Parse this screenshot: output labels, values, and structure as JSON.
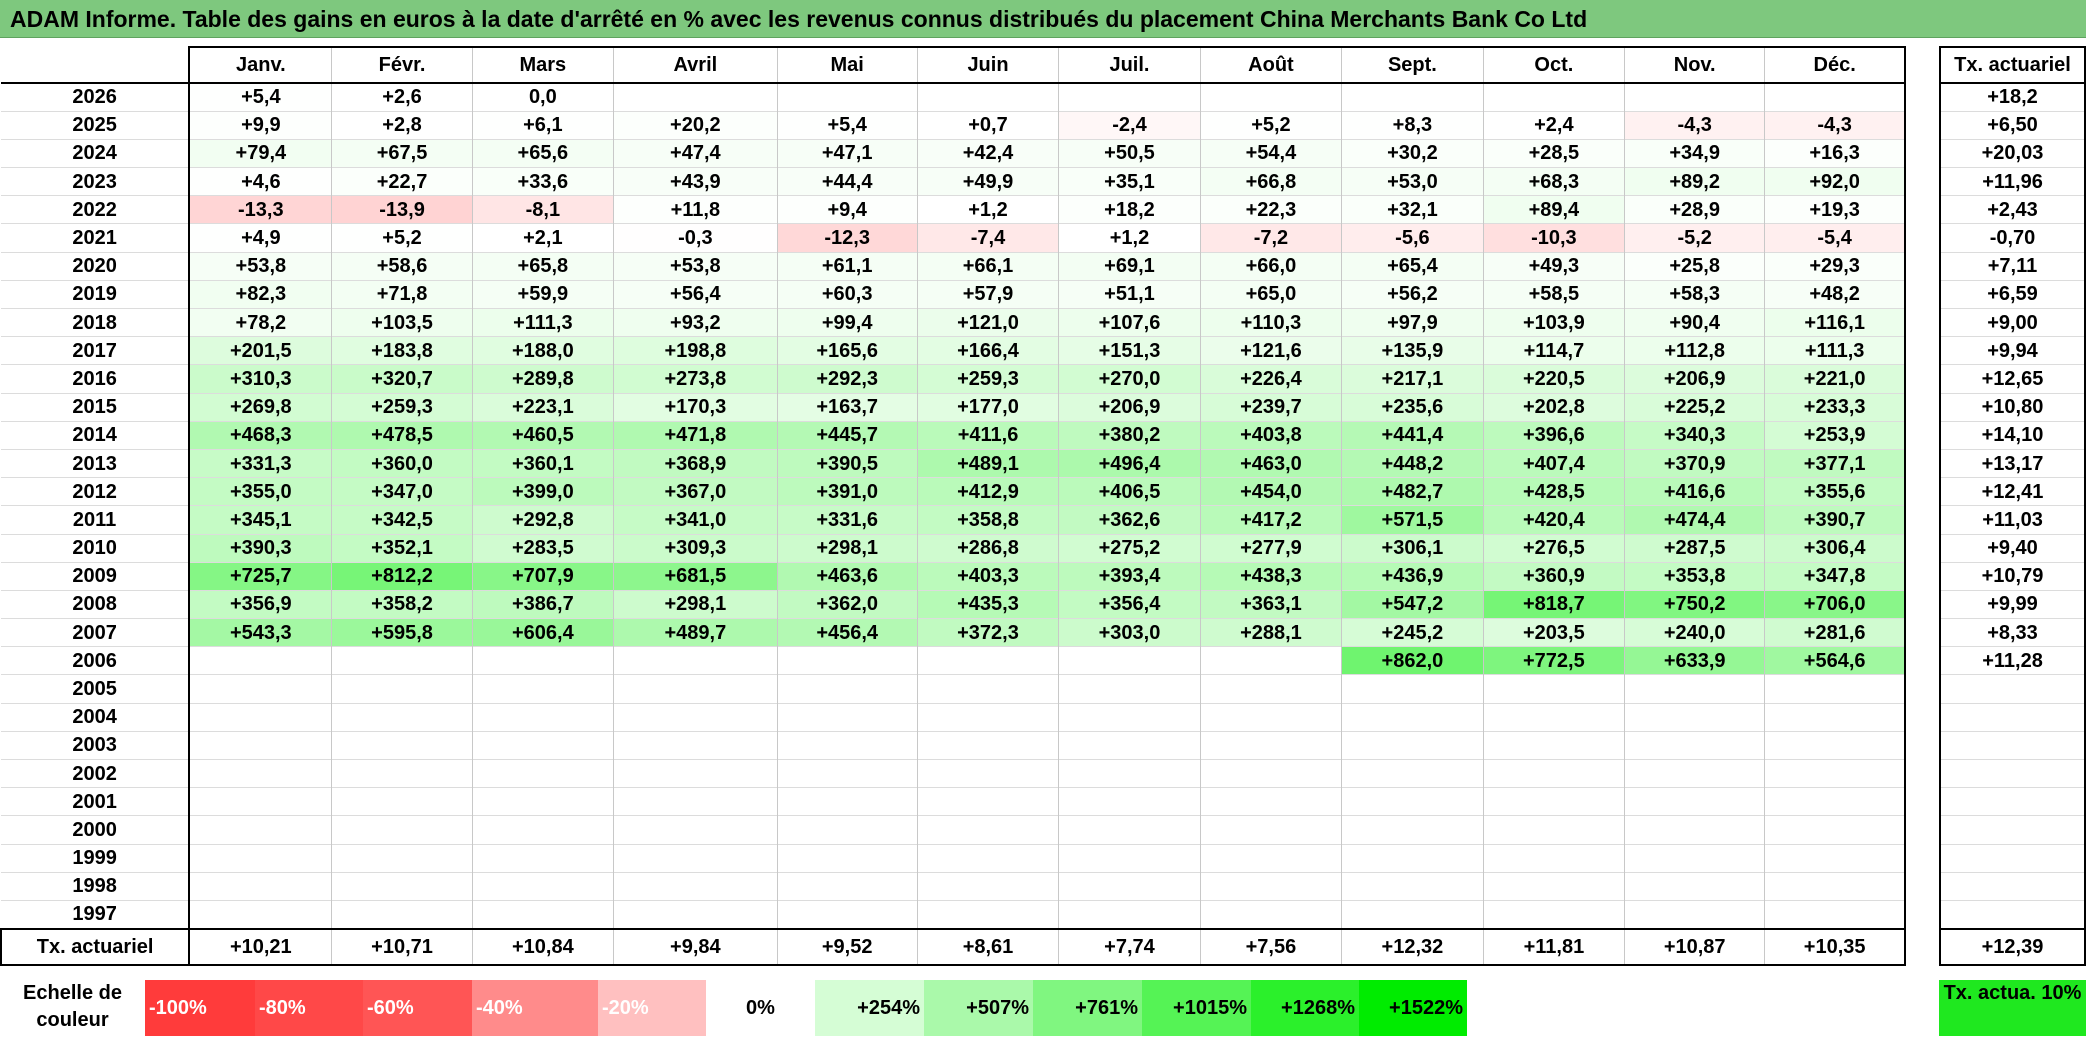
{
  "title": "ADAM Informe. Table des gains en euros à la date d'arrêté en % avec les revenus connus distribués du placement China Merchants Bank Co Ltd",
  "months": [
    "Janv.",
    "Févr.",
    "Mars",
    "Avril",
    "Mai",
    "Juin",
    "Juil.",
    "Août",
    "Sept.",
    "Oct.",
    "Nov.",
    "Déc."
  ],
  "side_header": "Tx. actuariel",
  "rows": [
    {
      "year": "2026",
      "values": [
        "+5,4",
        "+2,6",
        "0,0",
        "",
        "",
        "",
        "",
        "",
        "",
        "",
        "",
        ""
      ],
      "tx": "+18,2"
    },
    {
      "year": "2025",
      "values": [
        "+9,9",
        "+2,8",
        "+6,1",
        "+20,2",
        "+5,4",
        "+0,7",
        "-2,4",
        "+5,2",
        "+8,3",
        "+2,4",
        "-4,3",
        "-4,3"
      ],
      "tx": "+6,50"
    },
    {
      "year": "2024",
      "values": [
        "+79,4",
        "+67,5",
        "+65,6",
        "+47,4",
        "+47,1",
        "+42,4",
        "+50,5",
        "+54,4",
        "+30,2",
        "+28,5",
        "+34,9",
        "+16,3"
      ],
      "tx": "+20,03"
    },
    {
      "year": "2023",
      "values": [
        "+4,6",
        "+22,7",
        "+33,6",
        "+43,9",
        "+44,4",
        "+49,9",
        "+35,1",
        "+66,8",
        "+53,0",
        "+68,3",
        "+89,2",
        "+92,0"
      ],
      "tx": "+11,96"
    },
    {
      "year": "2022",
      "values": [
        "-13,3",
        "-13,9",
        "-8,1",
        "+11,8",
        "+9,4",
        "+1,2",
        "+18,2",
        "+22,3",
        "+32,1",
        "+89,4",
        "+28,9",
        "+19,3"
      ],
      "tx": "+2,43"
    },
    {
      "year": "2021",
      "values": [
        "+4,9",
        "+5,2",
        "+2,1",
        "-0,3",
        "-12,3",
        "-7,4",
        "+1,2",
        "-7,2",
        "-5,6",
        "-10,3",
        "-5,2",
        "-5,4"
      ],
      "tx": "-0,70"
    },
    {
      "year": "2020",
      "values": [
        "+53,8",
        "+58,6",
        "+65,8",
        "+53,8",
        "+61,1",
        "+66,1",
        "+69,1",
        "+66,0",
        "+65,4",
        "+49,3",
        "+25,8",
        "+29,3"
      ],
      "tx": "+7,11"
    },
    {
      "year": "2019",
      "values": [
        "+82,3",
        "+71,8",
        "+59,9",
        "+56,4",
        "+60,3",
        "+57,9",
        "+51,1",
        "+65,0",
        "+56,2",
        "+58,5",
        "+58,3",
        "+48,2"
      ],
      "tx": "+6,59"
    },
    {
      "year": "2018",
      "values": [
        "+78,2",
        "+103,5",
        "+111,3",
        "+93,2",
        "+99,4",
        "+121,0",
        "+107,6",
        "+110,3",
        "+97,9",
        "+103,9",
        "+90,4",
        "+116,1"
      ],
      "tx": "+9,00"
    },
    {
      "year": "2017",
      "values": [
        "+201,5",
        "+183,8",
        "+188,0",
        "+198,8",
        "+165,6",
        "+166,4",
        "+151,3",
        "+121,6",
        "+135,9",
        "+114,7",
        "+112,8",
        "+111,3"
      ],
      "tx": "+9,94"
    },
    {
      "year": "2016",
      "values": [
        "+310,3",
        "+320,7",
        "+289,8",
        "+273,8",
        "+292,3",
        "+259,3",
        "+270,0",
        "+226,4",
        "+217,1",
        "+220,5",
        "+206,9",
        "+221,0"
      ],
      "tx": "+12,65"
    },
    {
      "year": "2015",
      "values": [
        "+269,8",
        "+259,3",
        "+223,1",
        "+170,3",
        "+163,7",
        "+177,0",
        "+206,9",
        "+239,7",
        "+235,6",
        "+202,8",
        "+225,2",
        "+233,3"
      ],
      "tx": "+10,80"
    },
    {
      "year": "2014",
      "values": [
        "+468,3",
        "+478,5",
        "+460,5",
        "+471,8",
        "+445,7",
        "+411,6",
        "+380,2",
        "+403,8",
        "+441,4",
        "+396,6",
        "+340,3",
        "+253,9"
      ],
      "tx": "+14,10"
    },
    {
      "year": "2013",
      "values": [
        "+331,3",
        "+360,0",
        "+360,1",
        "+368,9",
        "+390,5",
        "+489,1",
        "+496,4",
        "+463,0",
        "+448,2",
        "+407,4",
        "+370,9",
        "+377,1"
      ],
      "tx": "+13,17"
    },
    {
      "year": "2012",
      "values": [
        "+355,0",
        "+347,0",
        "+399,0",
        "+367,0",
        "+391,0",
        "+412,9",
        "+406,5",
        "+454,0",
        "+482,7",
        "+428,5",
        "+416,6",
        "+355,6"
      ],
      "tx": "+12,41"
    },
    {
      "year": "2011",
      "values": [
        "+345,1",
        "+342,5",
        "+292,8",
        "+341,0",
        "+331,6",
        "+358,8",
        "+362,6",
        "+417,2",
        "+571,5",
        "+420,4",
        "+474,4",
        "+390,7"
      ],
      "tx": "+11,03"
    },
    {
      "year": "2010",
      "values": [
        "+390,3",
        "+352,1",
        "+283,5",
        "+309,3",
        "+298,1",
        "+286,8",
        "+275,2",
        "+277,9",
        "+306,1",
        "+276,5",
        "+287,5",
        "+306,4"
      ],
      "tx": "+9,40"
    },
    {
      "year": "2009",
      "values": [
        "+725,7",
        "+812,2",
        "+707,9",
        "+681,5",
        "+463,6",
        "+403,3",
        "+393,4",
        "+438,3",
        "+436,9",
        "+360,9",
        "+353,8",
        "+347,8"
      ],
      "tx": "+10,79"
    },
    {
      "year": "2008",
      "values": [
        "+356,9",
        "+358,2",
        "+386,7",
        "+298,1",
        "+362,0",
        "+435,3",
        "+356,4",
        "+363,1",
        "+547,2",
        "+818,7",
        "+750,2",
        "+706,0"
      ],
      "tx": "+9,99"
    },
    {
      "year": "2007",
      "values": [
        "+543,3",
        "+595,8",
        "+606,4",
        "+489,7",
        "+456,4",
        "+372,3",
        "+303,0",
        "+288,1",
        "+245,2",
        "+203,5",
        "+240,0",
        "+281,6"
      ],
      "tx": "+8,33"
    },
    {
      "year": "2006",
      "values": [
        "",
        "",
        "",
        "",
        "",
        "",
        "",
        "",
        "+862,0",
        "+772,5",
        "+633,9",
        "+564,6"
      ],
      "tx": "+11,28"
    },
    {
      "year": "2005",
      "values": [
        "",
        "",
        "",
        "",
        "",
        "",
        "",
        "",
        "",
        "",
        "",
        ""
      ],
      "tx": ""
    },
    {
      "year": "2004",
      "values": [
        "",
        "",
        "",
        "",
        "",
        "",
        "",
        "",
        "",
        "",
        "",
        ""
      ],
      "tx": ""
    },
    {
      "year": "2003",
      "values": [
        "",
        "",
        "",
        "",
        "",
        "",
        "",
        "",
        "",
        "",
        "",
        ""
      ],
      "tx": ""
    },
    {
      "year": "2002",
      "values": [
        "",
        "",
        "",
        "",
        "",
        "",
        "",
        "",
        "",
        "",
        "",
        ""
      ],
      "tx": ""
    },
    {
      "year": "2001",
      "values": [
        "",
        "",
        "",
        "",
        "",
        "",
        "",
        "",
        "",
        "",
        "",
        ""
      ],
      "tx": ""
    },
    {
      "year": "2000",
      "values": [
        "",
        "",
        "",
        "",
        "",
        "",
        "",
        "",
        "",
        "",
        "",
        ""
      ],
      "tx": ""
    },
    {
      "year": "1999",
      "values": [
        "",
        "",
        "",
        "",
        "",
        "",
        "",
        "",
        "",
        "",
        "",
        ""
      ],
      "tx": ""
    },
    {
      "year": "1998",
      "values": [
        "",
        "",
        "",
        "",
        "",
        "",
        "",
        "",
        "",
        "",
        "",
        ""
      ],
      "tx": ""
    },
    {
      "year": "1997",
      "values": [
        "",
        "",
        "",
        "",
        "",
        "",
        "",
        "",
        "",
        "",
        "",
        ""
      ],
      "tx": ""
    }
  ],
  "totals": {
    "label": "Tx. actuariel",
    "values": [
      "+10,21",
      "+10,71",
      "+10,84",
      "+9,84",
      "+9,52",
      "+8,61",
      "+7,74",
      "+7,56",
      "+12,32",
      "+11,81",
      "+10,87",
      "+10,35"
    ],
    "tx": "+12,39"
  },
  "scale": {
    "label": "Echelle de couleur",
    "steps": [
      {
        "label": "-100%",
        "color": "#ff3b3b",
        "kind": "neg"
      },
      {
        "label": "-80%",
        "color": "#ff4848",
        "kind": "neg"
      },
      {
        "label": "-60%",
        "color": "#ff5555",
        "kind": "neg"
      },
      {
        "label": "-40%",
        "color": "#ff8b8b",
        "kind": "neg"
      },
      {
        "label": "-20%",
        "color": "#ffc0c0",
        "kind": "neg"
      },
      {
        "label": "0%",
        "color": "#ffffff",
        "kind": "zero"
      },
      {
        "label": "+254%",
        "color": "#d5fdd5",
        "kind": "pos"
      },
      {
        "label": "+507%",
        "color": "#aaf9aa",
        "kind": "pos"
      },
      {
        "label": "+761%",
        "color": "#80f680",
        "kind": "pos"
      },
      {
        "label": "+1015%",
        "color": "#55f355",
        "kind": "pos"
      },
      {
        "label": "+1268%",
        "color": "#2bf02b",
        "kind": "pos"
      },
      {
        "label": "+1522%",
        "color": "#00ec00",
        "kind": "pos"
      }
    ],
    "tx_label": "Tx. actua. 10%",
    "tx_color": "#1fe81f"
  }
}
